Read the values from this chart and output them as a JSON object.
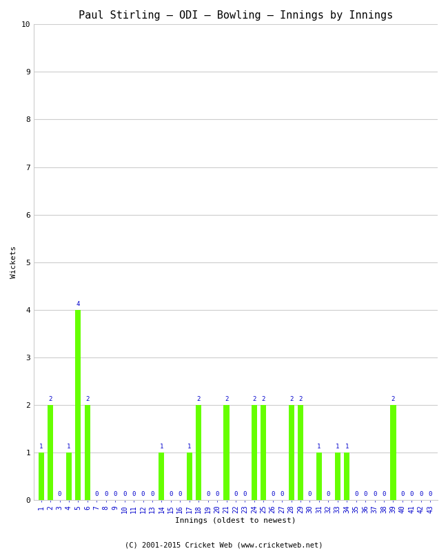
{
  "title": "Paul Stirling – ODI – Bowling – Innings by Innings",
  "xlabel": "Innings (oldest to newest)",
  "ylabel": "Wickets",
  "ylim": [
    0,
    10
  ],
  "yticks": [
    0,
    1,
    2,
    3,
    4,
    5,
    6,
    7,
    8,
    9,
    10
  ],
  "innings_labels": [
    "1",
    "2",
    "3",
    "4",
    "5",
    "6",
    "7",
    "8",
    "9",
    "10",
    "11",
    "12",
    "13",
    "14",
    "15",
    "16",
    "17",
    "18",
    "19",
    "20",
    "21",
    "22",
    "23",
    "24",
    "25",
    "26",
    "27",
    "28",
    "29",
    "30",
    "31",
    "32",
    "33",
    "34",
    "35",
    "36",
    "37",
    "38",
    "39",
    "40",
    "41",
    "42",
    "43"
  ],
  "wickets": [
    1,
    2,
    0,
    1,
    4,
    2,
    0,
    0,
    0,
    0,
    0,
    0,
    0,
    1,
    0,
    0,
    1,
    2,
    0,
    0,
    2,
    0,
    0,
    2,
    2,
    0,
    0,
    2,
    2,
    0,
    1,
    0,
    1,
    1,
    0,
    0,
    0,
    0,
    2,
    0,
    0,
    0,
    0
  ],
  "bar_color": "#66ff00",
  "label_color": "#0000cc",
  "background_color": "#ffffff",
  "grid_color": "#cccccc",
  "title_fontsize": 11,
  "axis_label_fontsize": 8,
  "tick_fontsize": 7,
  "bar_label_fontsize": 6.5,
  "footer": "(C) 2001-2015 Cricket Web (www.cricketweb.net)"
}
